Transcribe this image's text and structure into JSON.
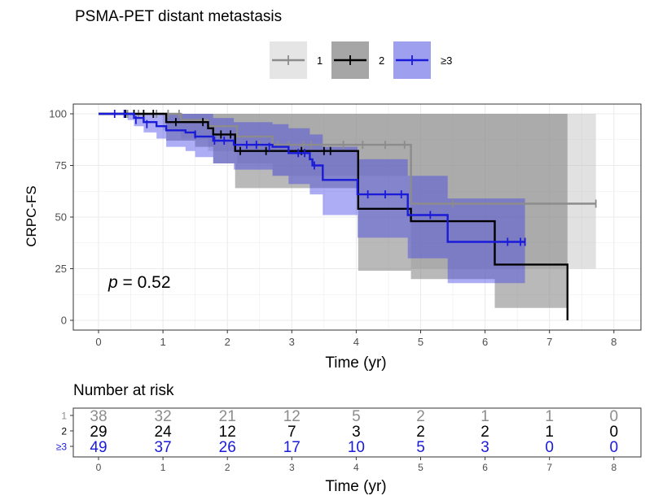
{
  "chart_data": {
    "type": "line",
    "subtype": "kaplan-meier",
    "title": "PSMA-PET distant metastasis",
    "xlabel": "Time (yr)",
    "ylabel": "CRPC-FS",
    "xlim": [
      0,
      8
    ],
    "ylim": [
      0,
      100
    ],
    "xticks": [
      0,
      1,
      2,
      3,
      4,
      5,
      6,
      7,
      8
    ],
    "yticks": [
      0,
      25,
      50,
      75,
      100
    ],
    "grid": true,
    "legend_position": "top",
    "annotation": {
      "italic": "p",
      "rest": " = 0.52"
    },
    "series": [
      {
        "name": "1",
        "color": "#8c8c8c",
        "band_color": "#bdbdbd",
        "steps": [
          [
            0,
            100
          ],
          [
            1.0,
            100
          ],
          [
            1.28,
            97
          ],
          [
            1.7,
            94
          ],
          [
            2.15,
            89
          ],
          [
            2.7,
            85
          ],
          [
            4.85,
            85
          ],
          [
            4.85,
            56.5
          ],
          [
            7.72,
            56.5
          ]
        ],
        "ci": [
          [
            0,
            100,
            100
          ],
          [
            1.0,
            100,
            92
          ],
          [
            1.28,
            100,
            88
          ],
          [
            1.7,
            100,
            82
          ],
          [
            2.15,
            100,
            76
          ],
          [
            2.7,
            100,
            70
          ],
          [
            4.85,
            100,
            48
          ],
          [
            4.85,
            100,
            25
          ],
          [
            7.72,
            100,
            25
          ]
        ],
        "censor": [
          [
            0.45,
            100
          ],
          [
            0.62,
            100
          ],
          [
            0.9,
            100
          ],
          [
            1.08,
            100
          ],
          [
            1.25,
            100
          ],
          [
            2.5,
            85
          ],
          [
            2.78,
            85
          ],
          [
            2.95,
            85
          ],
          [
            3.18,
            85
          ],
          [
            3.3,
            85
          ],
          [
            3.8,
            85
          ],
          [
            4.1,
            85
          ],
          [
            4.45,
            85
          ],
          [
            4.75,
            85
          ],
          [
            5.5,
            56.5
          ],
          [
            7.72,
            56.5
          ]
        ]
      },
      {
        "name": "2",
        "color": "#000000",
        "band_color": "#808080",
        "steps": [
          [
            0,
            100
          ],
          [
            1.05,
            100
          ],
          [
            1.05,
            96
          ],
          [
            1.5,
            96
          ],
          [
            1.7,
            93
          ],
          [
            1.78,
            90
          ],
          [
            2.12,
            90
          ],
          [
            2.12,
            82
          ],
          [
            3.6,
            82
          ],
          [
            4.03,
            82
          ],
          [
            4.03,
            54
          ],
          [
            4.85,
            54
          ],
          [
            4.85,
            48
          ],
          [
            6.15,
            48
          ],
          [
            6.15,
            27
          ],
          [
            7.28,
            27
          ],
          [
            7.28,
            0
          ]
        ],
        "ci": [
          [
            0,
            100,
            100
          ],
          [
            1.05,
            100,
            87
          ],
          [
            1.5,
            100,
            84
          ],
          [
            1.78,
            100,
            76
          ],
          [
            2.12,
            100,
            64
          ],
          [
            4.03,
            100,
            24
          ],
          [
            4.85,
            100,
            20
          ],
          [
            6.15,
            100,
            6
          ],
          [
            7.28,
            100,
            6
          ]
        ],
        "censor": [
          [
            0.42,
            100
          ],
          [
            0.55,
            100
          ],
          [
            0.7,
            100
          ],
          [
            0.85,
            100
          ],
          [
            1.2,
            96
          ],
          [
            1.62,
            96
          ],
          [
            1.9,
            90
          ],
          [
            2.05,
            90
          ],
          [
            2.2,
            82
          ],
          [
            2.6,
            82
          ],
          [
            3.15,
            82
          ],
          [
            3.5,
            82
          ],
          [
            3.6,
            82
          ]
        ],
        "end": 7.28
      },
      {
        "name": "≥3",
        "color": "#1a1ad9",
        "band_color": "#3b3be6",
        "steps": [
          [
            0,
            100
          ],
          [
            0.45,
            100
          ],
          [
            0.55,
            98
          ],
          [
            0.7,
            96
          ],
          [
            0.9,
            94
          ],
          [
            1.05,
            92
          ],
          [
            1.35,
            91
          ],
          [
            1.5,
            89
          ],
          [
            1.78,
            87
          ],
          [
            2.1,
            85
          ],
          [
            2.7,
            84
          ],
          [
            2.95,
            81
          ],
          [
            3.2,
            81
          ],
          [
            3.28,
            78
          ],
          [
            3.32,
            75
          ],
          [
            3.48,
            75
          ],
          [
            3.48,
            68
          ],
          [
            4.02,
            68
          ],
          [
            4.02,
            61
          ],
          [
            4.8,
            61
          ],
          [
            4.8,
            51
          ],
          [
            5.42,
            51
          ],
          [
            5.42,
            38
          ],
          [
            6.62,
            38
          ]
        ],
        "ci": [
          [
            0,
            100,
            100
          ],
          [
            0.45,
            100,
            97
          ],
          [
            0.55,
            100,
            94
          ],
          [
            0.7,
            100,
            91
          ],
          [
            0.9,
            100,
            88
          ],
          [
            1.05,
            100,
            84
          ],
          [
            1.35,
            100,
            82
          ],
          [
            1.5,
            100,
            79
          ],
          [
            1.78,
            98,
            76
          ],
          [
            2.1,
            96,
            73
          ],
          [
            2.7,
            95,
            70
          ],
          [
            2.95,
            93,
            66
          ],
          [
            3.28,
            90,
            61
          ],
          [
            3.48,
            84,
            51
          ],
          [
            4.02,
            78,
            40
          ],
          [
            4.8,
            70,
            30
          ],
          [
            5.42,
            59,
            18
          ],
          [
            6.62,
            59,
            18
          ]
        ],
        "censor": [
          [
            0.25,
            100
          ],
          [
            0.4,
            100
          ],
          [
            0.58,
            97
          ],
          [
            0.75,
            95
          ],
          [
            1.5,
            90
          ],
          [
            1.8,
            87
          ],
          [
            1.95,
            87
          ],
          [
            2.3,
            85
          ],
          [
            2.45,
            85
          ],
          [
            2.65,
            84
          ],
          [
            3.1,
            81
          ],
          [
            3.2,
            81
          ],
          [
            3.35,
            75
          ],
          [
            4.18,
            61
          ],
          [
            4.45,
            61
          ],
          [
            4.7,
            61
          ],
          [
            5.15,
            51
          ],
          [
            6.35,
            38
          ],
          [
            6.55,
            38
          ],
          [
            6.62,
            38
          ]
        ]
      }
    ],
    "risk_table": {
      "title": "Number at risk",
      "xlabel": "Time (yr)",
      "times": [
        0,
        1,
        2,
        3,
        4,
        5,
        6,
        7,
        8
      ],
      "rows": [
        {
          "label": "1",
          "color": "#8c8c8c",
          "counts": [
            38,
            32,
            21,
            12,
            5,
            2,
            1,
            1,
            0
          ]
        },
        {
          "label": "2",
          "color": "#000000",
          "counts": [
            29,
            24,
            12,
            7,
            3,
            2,
            2,
            1,
            0
          ]
        },
        {
          "label": "≥3",
          "color": "#1a1ad9",
          "counts": [
            49,
            37,
            26,
            17,
            10,
            5,
            3,
            0,
            0
          ]
        }
      ]
    }
  }
}
